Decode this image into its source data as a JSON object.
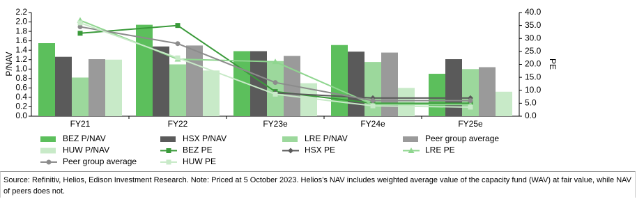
{
  "chart_data": {
    "type": "bar-line",
    "ylabel": "P/NAV",
    "y2label": "PE",
    "categories": [
      "FY21",
      "FY22",
      "FY23e",
      "FY24e",
      "FY25e"
    ],
    "ylim": [
      0,
      2.2
    ],
    "yticks": [
      {
        "value": 0,
        "label": "0.0"
      },
      0.2,
      0.4,
      0.6,
      0.8,
      {
        "value": 1,
        "label": "1.0"
      },
      1.2,
      1.4,
      1.6,
      1.8,
      {
        "value": 2,
        "label": "2.0"
      },
      2.2
    ],
    "y2lim": [
      0,
      40
    ],
    "y2ticks": [
      {
        "value": 0,
        "label": "0.0"
      },
      {
        "value": 5,
        "label": "5.0"
      },
      {
        "value": 10,
        "label": "10.0"
      },
      {
        "value": 15,
        "label": "15.0"
      },
      {
        "value": 20,
        "label": "20.0"
      },
      {
        "value": 25,
        "label": "25.0"
      },
      {
        "value": 30,
        "label": "30.0"
      },
      {
        "value": 35,
        "label": "35.0"
      },
      {
        "value": 40,
        "label": "40.0"
      }
    ],
    "series": [
      {
        "name": "BEZ P/NAV",
        "color": "#5cbf5c",
        "kind": "bar",
        "values": [
          1.55,
          1.94,
          1.38,
          1.51,
          0.9
        ]
      },
      {
        "name": "HSX P/NAV",
        "color": "#5a5a5a",
        "kind": "bar",
        "values": [
          1.26,
          1.48,
          1.38,
          1.37,
          1.21
        ]
      },
      {
        "name": "LRE P/NAV",
        "color": "#9cd89c",
        "kind": "bar",
        "values": [
          0.82,
          1.1,
          1.17,
          1.15,
          1.0
        ]
      },
      {
        "name": "Peer group average",
        "color": "#9a9a9a",
        "kind": "bar",
        "values": [
          1.21,
          1.5,
          1.28,
          1.35,
          1.04
        ]
      },
      {
        "name": "HUW P/NAV",
        "color": "#c8eac8",
        "kind": "bar",
        "values": [
          1.2,
          0.97,
          0.7,
          0.6,
          0.52
        ]
      },
      {
        "name": "BEZ PE",
        "color": "#3a9a3a",
        "kind": "line",
        "marker": "square",
        "axis": "y2",
        "values": [
          32,
          35,
          9.5,
          5,
          5
        ]
      },
      {
        "name": "HSX PE",
        "color": "#5a5a5a",
        "kind": "line",
        "marker": "diamond",
        "axis": "y2",
        "values": [
          null,
          null,
          9,
          7,
          7
        ]
      },
      {
        "name": "LRE PE",
        "color": "#8fd68f",
        "kind": "line",
        "marker": "triangle",
        "axis": "y2",
        "values": [
          37,
          22,
          21,
          4.5,
          4.5
        ]
      },
      {
        "name": "Peer group average",
        "color": "#8c8c8c",
        "kind": "line",
        "marker": "circle",
        "axis": "y2",
        "values": [
          34.5,
          28,
          13,
          6,
          6
        ]
      },
      {
        "name": "HUW PE",
        "color": "#c8eac8",
        "kind": "line",
        "marker": "square",
        "axis": "y2",
        "values": [
          36,
          22.5,
          8.5,
          4,
          3.5
        ]
      }
    ]
  },
  "footer": {
    "source": "Source: Refinitiv, Helios, Edison Investment Research. Note: Priced at 5 October 2023. Helios’s NAV includes weighted average value of the capacity fund (WAV) at fair value, while NAV of peers does not."
  }
}
